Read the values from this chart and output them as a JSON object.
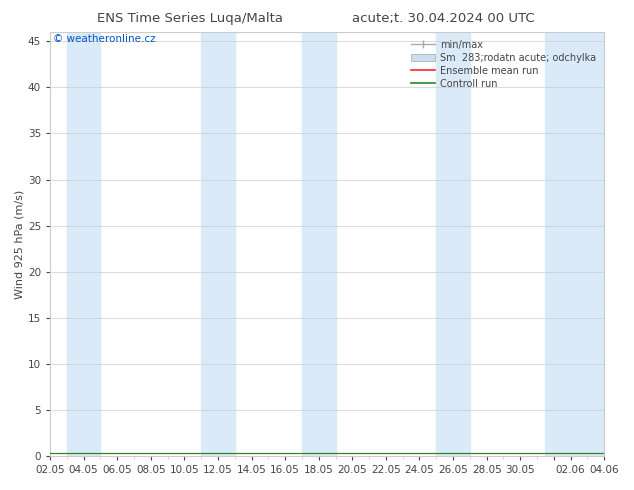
{
  "title_left": "ENS Time Series Luqa/Malta",
  "title_right": "acute;t. 30.04.2024 00 UTC",
  "ylabel": "Wind 925 hPa (m/s)",
  "ylim": [
    0,
    46
  ],
  "yticks": [
    0,
    5,
    10,
    15,
    20,
    25,
    30,
    35,
    40,
    45
  ],
  "bg_color": "#ffffff",
  "plot_bg_color": "#ffffff",
  "band_color": "#daeaf8",
  "watermark": "© weatheronline.cz",
  "watermark_color": "#0055cc",
  "legend_minmax_label": "min/max",
  "legend_sm_label": "Sm  283;rodatn acute; odchylka",
  "legend_ens_label": "Ensemble mean run",
  "legend_ctrl_label": "Controll run",
  "legend_minmax_color": "#aaaaaa",
  "legend_sm_color": "#ccdff0",
  "legend_ens_color": "#ff2222",
  "legend_ctrl_color": "#228822",
  "xtick_labels": [
    "02.05",
    "04.05",
    "06.05",
    "08.05",
    "10.05",
    "12.05",
    "14.05",
    "16.05",
    "18.05",
    "20.05",
    "22.05",
    "24.05",
    "26.05",
    "28.05",
    "30.05",
    "",
    "02.06",
    "04.06"
  ],
  "xtick_positions": [
    0,
    2,
    4,
    6,
    8,
    10,
    12,
    14,
    16,
    18,
    20,
    22,
    24,
    26,
    28,
    30,
    31,
    33
  ],
  "night_bands": [
    [
      1.0,
      3.0
    ],
    [
      9.0,
      11.0
    ],
    [
      15.0,
      17.0
    ],
    [
      23.0,
      25.0
    ],
    [
      29.5,
      33.0
    ]
  ],
  "x_min": 0,
  "x_max": 33,
  "data_y": 0.3,
  "grid_color": "#cccccc",
  "font_color": "#444444",
  "title_fontsize": 9.5,
  "label_fontsize": 8,
  "tick_fontsize": 7.5,
  "legend_fontsize": 7
}
